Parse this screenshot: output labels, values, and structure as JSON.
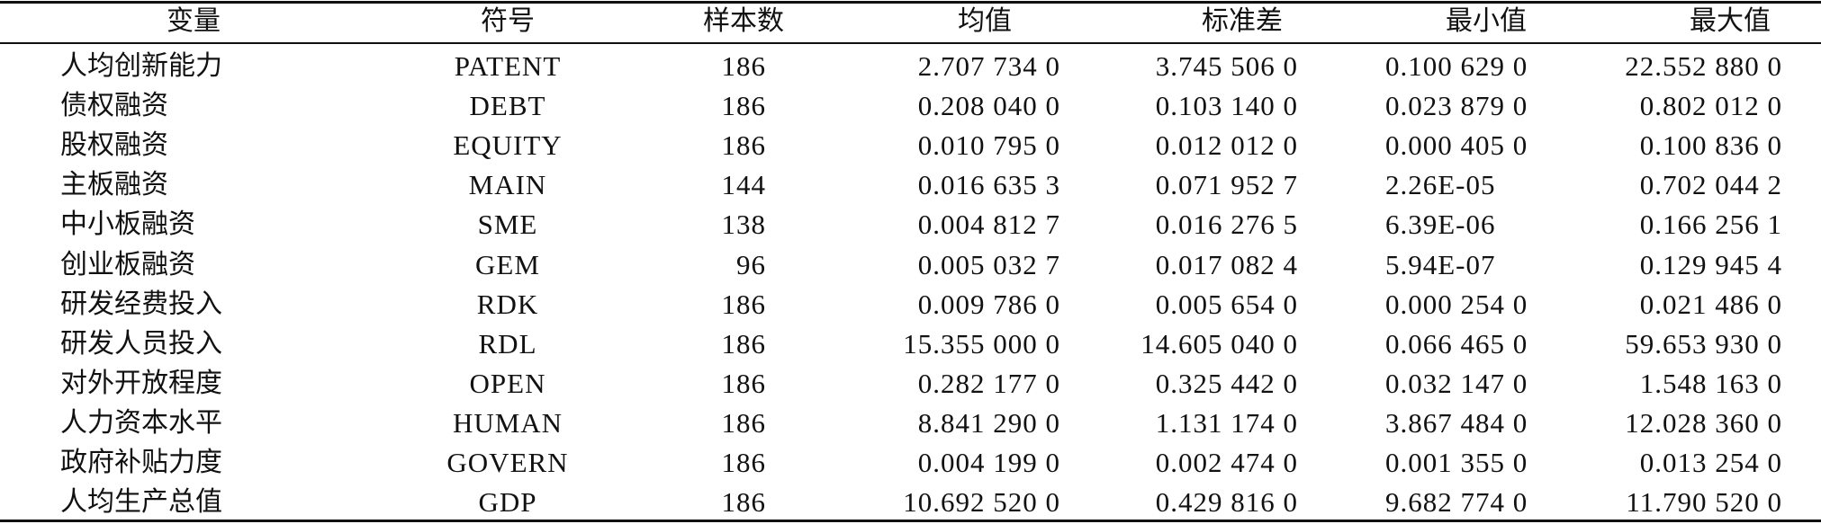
{
  "table": {
    "columns": [
      "变量",
      "符号",
      "样本数",
      "均值",
      "标准差",
      "最小值",
      "最大值"
    ],
    "rows": [
      [
        "人均创新能力",
        "PATENT",
        "186",
        "2.707 734 0",
        "3.745 506 0",
        "0.100 629 0",
        "22.552 880 0"
      ],
      [
        "债权融资",
        "DEBT",
        "186",
        "0.208 040 0",
        "0.103 140 0",
        "0.023 879 0",
        "0.802 012 0"
      ],
      [
        "股权融资",
        "EQUITY",
        "186",
        "0.010 795 0",
        "0.012 012 0",
        "0.000 405 0",
        "0.100 836 0"
      ],
      [
        "主板融资",
        "MAIN",
        "144",
        "0.016 635 3",
        "0.071 952 7",
        "2.26E-05",
        "0.702 044 2"
      ],
      [
        "中小板融资",
        "SME",
        "138",
        "0.004 812 7",
        "0.016 276 5",
        "6.39E-06",
        "0.166 256 1"
      ],
      [
        "创业板融资",
        "GEM",
        "96",
        "0.005 032 7",
        "0.017 082 4",
        "5.94E-07",
        "0.129 945 4"
      ],
      [
        "研发经费投入",
        "RDK",
        "186",
        "0.009 786 0",
        "0.005 654 0",
        "0.000 254 0",
        "0.021 486 0"
      ],
      [
        "研发人员投入",
        "RDL",
        "186",
        "15.355 000 0",
        "14.605 040 0",
        "0.066 465 0",
        "59.653 930 0"
      ],
      [
        "对外开放程度",
        "OPEN",
        "186",
        "0.282 177 0",
        "0.325 442 0",
        "0.032 147 0",
        "1.548 163 0"
      ],
      [
        "人力资本水平",
        "HUMAN",
        "186",
        "8.841 290 0",
        "1.131 174 0",
        "3.867 484 0",
        "12.028 360 0"
      ],
      [
        "政府补贴力度",
        "GOVERN",
        "186",
        "0.004 199 0",
        "0.002 474 0",
        "0.001 355 0",
        "0.013 254 0"
      ],
      [
        "人均生产总值",
        "GDP",
        "186",
        "10.692 520 0",
        "0.429 816 0",
        "9.682 774 0",
        "11.790 520 0"
      ]
    ]
  }
}
